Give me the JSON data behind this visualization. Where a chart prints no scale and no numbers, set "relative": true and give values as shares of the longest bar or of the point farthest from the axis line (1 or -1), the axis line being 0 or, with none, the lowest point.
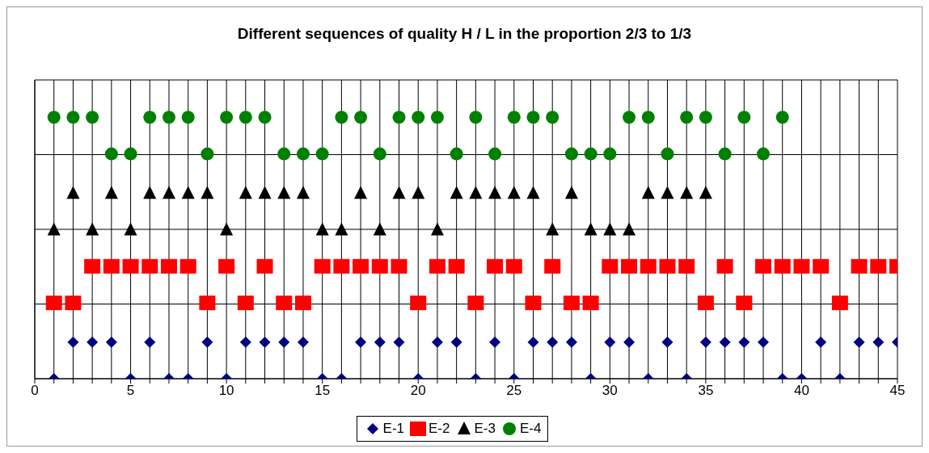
{
  "chart_data": {
    "type": "scatter",
    "title": "Different sequences of quality H / L in the proportion 2/3 to 1/3",
    "relative": true,
    "x": [
      1,
      2,
      3,
      4,
      5,
      6,
      7,
      8,
      9,
      10,
      11,
      12,
      13,
      14,
      15,
      16,
      17,
      18,
      19,
      20,
      21,
      22,
      23,
      24,
      25,
      26,
      27,
      28,
      29,
      30,
      31,
      32,
      33,
      34,
      35,
      36,
      37,
      38,
      39,
      40,
      41,
      42,
      43,
      44,
      45
    ],
    "xlim": [
      0,
      45
    ],
    "xticks": [
      0,
      {
        "value": 1,
        "label": null
      },
      {
        "value": 2,
        "label": null
      },
      {
        "value": 3,
        "label": null
      },
      {
        "value": 4,
        "label": null
      },
      5,
      {
        "value": 6,
        "label": null
      },
      {
        "value": 7,
        "label": null
      },
      {
        "value": 8,
        "label": null
      },
      {
        "value": 9,
        "label": null
      },
      10,
      {
        "value": 11,
        "label": null
      },
      {
        "value": 12,
        "label": null
      },
      {
        "value": 13,
        "label": null
      },
      {
        "value": 14,
        "label": null
      },
      15,
      {
        "value": 16,
        "label": null
      },
      {
        "value": 17,
        "label": null
      },
      {
        "value": 18,
        "label": null
      },
      {
        "value": 19,
        "label": null
      },
      20,
      {
        "value": 21,
        "label": null
      },
      {
        "value": 22,
        "label": null
      },
      {
        "value": 23,
        "label": null
      },
      {
        "value": 24,
        "label": null
      },
      25,
      {
        "value": 26,
        "label": null
      },
      {
        "value": 27,
        "label": null
      },
      {
        "value": 28,
        "label": null
      },
      {
        "value": 29,
        "label": null
      },
      30,
      {
        "value": 31,
        "label": null
      },
      {
        "value": 32,
        "label": null
      },
      {
        "value": 33,
        "label": null
      },
      {
        "value": 34,
        "label": null
      },
      35,
      {
        "value": 36,
        "label": null
      },
      {
        "value": 37,
        "label": null
      },
      {
        "value": 38,
        "label": null
      },
      {
        "value": 39,
        "label": null
      },
      40,
      {
        "value": 41,
        "label": null
      },
      {
        "value": 42,
        "label": null
      },
      {
        "value": 43,
        "label": null
      },
      {
        "value": 44,
        "label": null
      },
      45
    ],
    "grid": true,
    "legend": "bottom",
    "series": [
      {
        "name": "E-1",
        "color": "#000080",
        "marker": "diamond",
        "values": [
          0,
          0.14,
          0.14,
          0.14,
          0,
          0.14,
          0,
          0,
          0.14,
          0,
          0.14,
          0.14,
          0.14,
          0.14,
          0,
          0,
          0.14,
          0.14,
          0.14,
          0,
          0.14,
          0.14,
          0,
          0.14,
          0,
          0.14,
          0.14,
          0.14,
          0,
          0.14,
          0.14,
          0,
          0.14,
          0,
          0.14,
          0.14,
          0.14,
          0.14,
          0,
          0,
          0.14,
          0,
          0.14,
          0.14,
          0.14
        ]
      },
      {
        "name": "E-2",
        "color": "#ff0000",
        "marker": "square",
        "values": [
          0.29,
          0.29,
          0.43,
          0.43,
          0.43,
          0.43,
          0.43,
          0.43,
          0.29,
          0.43,
          0.29,
          0.43,
          0.29,
          0.29,
          0.43,
          0.43,
          0.43,
          0.43,
          0.43,
          0.29,
          0.43,
          0.43,
          0.29,
          0.43,
          0.43,
          0.29,
          0.43,
          0.29,
          0.29,
          0.43,
          0.43,
          0.43,
          0.43,
          0.43,
          0.29,
          0.43,
          0.29,
          0.43,
          0.43,
          0.43,
          0.43,
          0.29,
          0.43,
          0.43,
          0.43
        ]
      },
      {
        "name": "E-3",
        "color": "#000000",
        "marker": "triangle",
        "values": [
          0.57,
          0.71,
          0.57,
          0.71,
          0.57,
          0.71,
          0.71,
          0.71,
          0.71,
          0.57,
          0.71,
          0.71,
          0.71,
          0.71,
          0.57,
          0.57,
          0.71,
          0.57,
          0.71,
          0.71,
          0.57,
          0.71,
          0.71,
          0.71,
          0.71,
          0.71,
          0.57,
          0.71,
          0.57,
          0.57,
          0.57,
          0.71,
          0.71,
          0.71,
          0.71,
          null,
          null,
          null,
          null,
          null,
          null,
          null,
          null,
          null,
          null
        ]
      },
      {
        "name": "E-4",
        "color": "#008000",
        "marker": "circle",
        "values": [
          1,
          1,
          1,
          0.86,
          0.86,
          1,
          1,
          1,
          0.86,
          1,
          1,
          1,
          0.86,
          0.86,
          0.86,
          1,
          1,
          0.86,
          1,
          1,
          1,
          0.86,
          1,
          0.86,
          1,
          1,
          1,
          0.86,
          0.86,
          0.86,
          1,
          1,
          0.86,
          1,
          1,
          0.86,
          1,
          0.86,
          1,
          null,
          null,
          null,
          null,
          null,
          null
        ]
      }
    ]
  }
}
